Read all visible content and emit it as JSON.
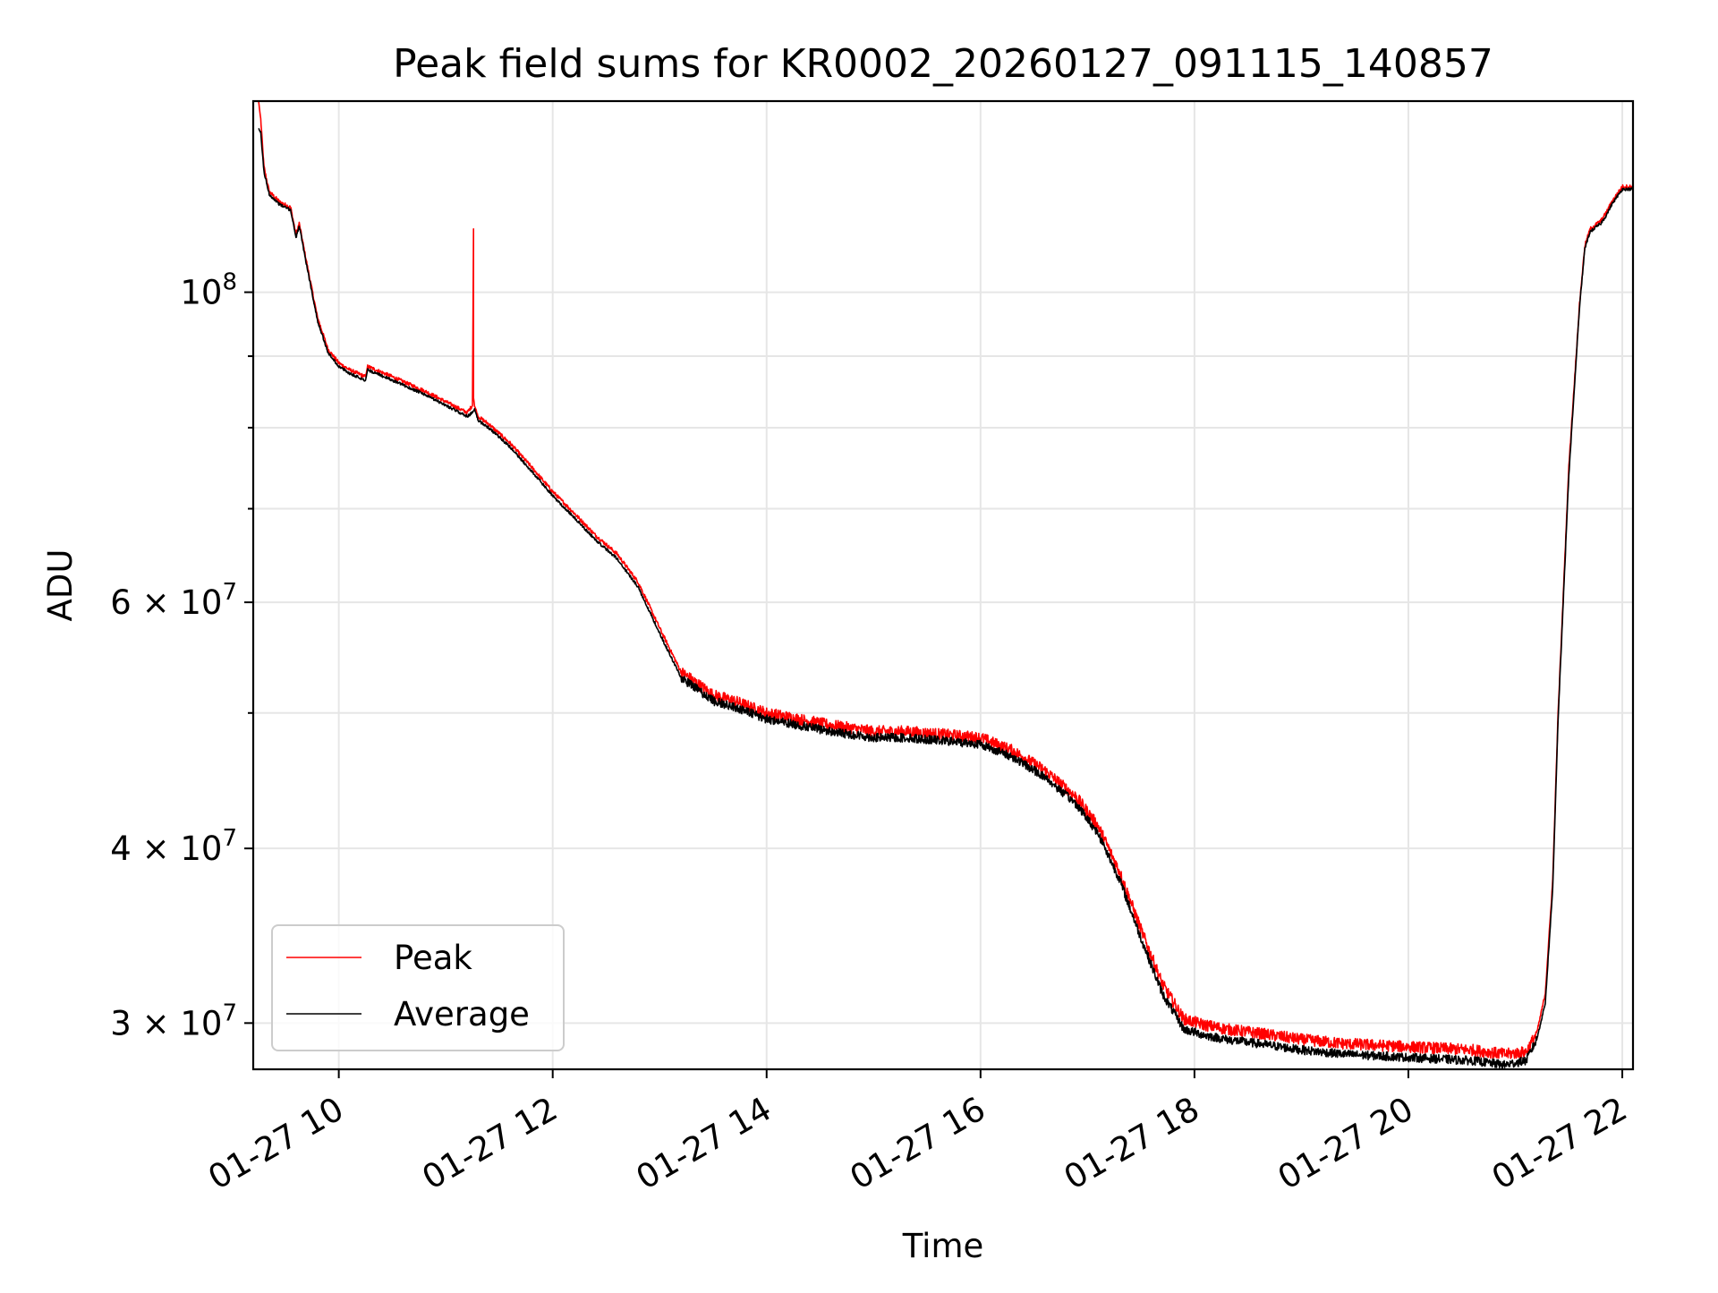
{
  "chart_data": {
    "type": "line",
    "title": "Peak field sums for KR0002_20260127_091115_140857",
    "xlabel": "Time",
    "ylabel": "ADU",
    "yscale": "log",
    "grid": true,
    "legend_location": "lower-left",
    "xlim_hours": [
      9.2,
      22.1
    ],
    "ylim": [
      27800000,
      137000000
    ],
    "x_ticks": [
      {
        "hour": 10,
        "label": "01-27 10"
      },
      {
        "hour": 12,
        "label": "01-27 12"
      },
      {
        "hour": 14,
        "label": "01-27 14"
      },
      {
        "hour": 16,
        "label": "01-27 16"
      },
      {
        "hour": 18,
        "label": "01-27 18"
      },
      {
        "hour": 20,
        "label": "01-27 20"
      },
      {
        "hour": 22,
        "label": "01-27 22"
      }
    ],
    "y_major_ticks": [
      {
        "value": 30000000,
        "mant": "3",
        "exp": "7"
      },
      {
        "value": 40000000,
        "mant": "4",
        "exp": "7"
      },
      {
        "value": 60000000,
        "mant": "6",
        "exp": "7"
      },
      {
        "value": 100000000,
        "mant": "",
        "exp": "8"
      }
    ],
    "y_minor_ticks": [
      50000000,
      70000000,
      80000000,
      90000000
    ],
    "series": [
      {
        "name": "Peak",
        "color": "#ff0000",
        "noise": 0.012,
        "x": [
          9.25,
          9.27,
          9.3,
          9.35,
          9.45,
          9.55,
          9.6,
          9.63,
          9.7,
          9.8,
          9.9,
          10.0,
          10.1,
          10.25,
          10.27,
          10.5,
          10.8,
          11.0,
          11.2,
          11.25,
          11.26,
          11.26,
          11.27,
          11.3,
          11.4,
          11.6,
          11.8,
          12.0,
          12.2,
          12.4,
          12.6,
          12.8,
          13.0,
          13.2,
          13.35,
          13.5,
          13.7,
          14.0,
          14.3,
          14.6,
          15.0,
          15.3,
          15.6,
          16.0,
          16.3,
          16.6,
          16.9,
          17.1,
          17.3,
          17.5,
          17.7,
          17.9,
          18.1,
          18.3,
          18.6,
          19.0,
          19.4,
          19.8,
          20.2,
          20.6,
          20.9,
          21.1,
          21.2,
          21.28,
          21.35,
          21.4,
          21.5,
          21.6,
          21.65,
          21.7,
          21.8,
          21.85,
          21.9,
          22.0,
          22.1
        ],
        "y": [
          137000000,
          133000000,
          123000000,
          118000000,
          116000000,
          115000000,
          110000000,
          112000000,
          105000000,
          96000000,
          91000000,
          89000000,
          88000000,
          87000000,
          88500000,
          87000000,
          85000000,
          83500000,
          82000000,
          83000000,
          111000000,
          84000000,
          83000000,
          81500000,
          80500000,
          78000000,
          75000000,
          72000000,
          69500000,
          67000000,
          65000000,
          62000000,
          57500000,
          53500000,
          52500000,
          51500000,
          51000000,
          50000000,
          49500000,
          49000000,
          48500000,
          48500000,
          48300000,
          48000000,
          47000000,
          45500000,
          43500000,
          41500000,
          38500000,
          35000000,
          32000000,
          30200000,
          29900000,
          29700000,
          29500000,
          29200000,
          29000000,
          28900000,
          28800000,
          28700000,
          28500000,
          28600000,
          29500000,
          31500000,
          38000000,
          50000000,
          75000000,
          98000000,
          108000000,
          111000000,
          112500000,
          114000000,
          116000000,
          119000000,
          119000000
        ]
      },
      {
        "name": "Average",
        "color": "#000000",
        "noise": 0.009,
        "x": [
          9.25,
          9.27,
          9.3,
          9.35,
          9.45,
          9.55,
          9.6,
          9.63,
          9.7,
          9.8,
          9.9,
          10.0,
          10.1,
          10.25,
          10.27,
          10.5,
          10.8,
          11.0,
          11.2,
          11.25,
          11.27,
          11.3,
          11.4,
          11.6,
          11.8,
          12.0,
          12.2,
          12.4,
          12.6,
          12.8,
          13.0,
          13.2,
          13.35,
          13.5,
          13.7,
          14.0,
          14.3,
          14.6,
          15.0,
          15.3,
          15.6,
          16.0,
          16.3,
          16.6,
          16.9,
          17.1,
          17.3,
          17.5,
          17.7,
          17.9,
          18.1,
          18.3,
          18.6,
          19.0,
          19.4,
          19.8,
          20.2,
          20.6,
          20.9,
          21.1,
          21.2,
          21.28,
          21.35,
          21.4,
          21.5,
          21.6,
          21.65,
          21.7,
          21.8,
          21.85,
          21.9,
          22.0,
          22.1
        ],
        "y": [
          131000000,
          130000000,
          122000000,
          117500000,
          115500000,
          114500000,
          109500000,
          111500000,
          104500000,
          95500000,
          90500000,
          88500000,
          87500000,
          86500000,
          88000000,
          86500000,
          84500000,
          83000000,
          81500000,
          82000000,
          82500000,
          81000000,
          80000000,
          77500000,
          74500000,
          71500000,
          69000000,
          66500000,
          64500000,
          61500000,
          57000000,
          53000000,
          52000000,
          51000000,
          50500000,
          49500000,
          49000000,
          48500000,
          48000000,
          48000000,
          47800000,
          47500000,
          46500000,
          45000000,
          43000000,
          41000000,
          38000000,
          34500000,
          31500000,
          29700000,
          29400000,
          29200000,
          29000000,
          28700000,
          28500000,
          28400000,
          28300000,
          28200000,
          28000000,
          28200000,
          29200000,
          31000000,
          37500000,
          49500000,
          74000000,
          97500000,
          107500000,
          110500000,
          112000000,
          113500000,
          115500000,
          118500000,
          118500000
        ]
      }
    ]
  }
}
